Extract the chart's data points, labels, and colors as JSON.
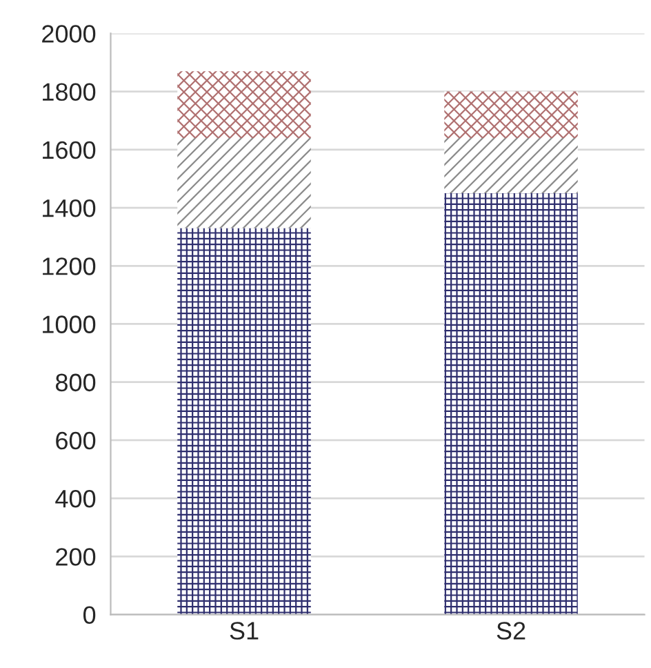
{
  "chart_data": {
    "type": "bar",
    "stacked": true,
    "categories": [
      "S1",
      "S2"
    ],
    "series": [
      {
        "color": "#2e2e6e",
        "values": [
          1330,
          1450
        ]
      },
      {
        "color": "#8a8a8a",
        "values": [
          310,
          190
        ]
      },
      {
        "color": "#b07070",
        "values": [
          230,
          160
        ]
      }
    ],
    "ylim": [
      0,
      2000
    ],
    "yticks": [
      0,
      200,
      400,
      600,
      800,
      1000,
      1200,
      1400,
      1600,
      1800,
      2000
    ],
    "grid": "y",
    "legend": false
  }
}
